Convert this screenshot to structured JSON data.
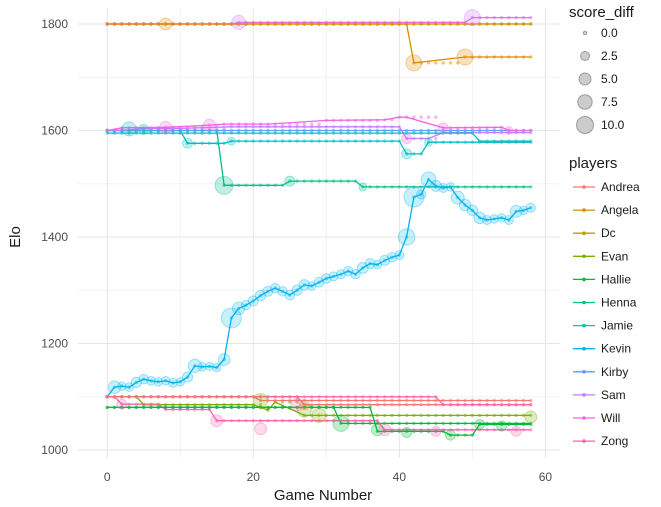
{
  "chart_data": {
    "type": "line",
    "xlabel": "Game Number",
    "ylabel": "Elo",
    "xlim": [
      -4,
      62
    ],
    "ylim": [
      985,
      1830
    ],
    "x_ticks": [
      0,
      20,
      40,
      60
    ],
    "y_ticks": [
      1000,
      1200,
      1400,
      1600,
      1800
    ],
    "x_tick_labels": [
      "0",
      "20",
      "40",
      "60"
    ],
    "y_tick_labels": [
      "1000",
      "1200",
      "1400",
      "1600",
      "1800"
    ],
    "grid": true,
    "size_legend": {
      "title": "score_diff",
      "values": [
        0.0,
        2.5,
        5.0,
        7.5,
        10.0
      ],
      "labels": [
        "0.0",
        "2.5",
        "5.0",
        "7.5",
        "10.0"
      ]
    },
    "color_legend": {
      "title": "players",
      "placement": "right"
    },
    "series": [
      {
        "name": "Andrea",
        "color": "#F8766D",
        "x": [
          0,
          26,
          27,
          58
        ],
        "y": [
          1100,
          1100,
          1085,
          1085
        ]
      },
      {
        "name": "Angela",
        "color": "#DE8C00",
        "x": [
          0,
          41,
          42,
          49,
          58
        ],
        "y": [
          1800,
          1800,
          1727,
          1738,
          1738
        ]
      },
      {
        "name": "Dc",
        "color": "#B79F00",
        "x": [
          0,
          8,
          58
        ],
        "y": [
          1800,
          1800,
          1800
        ]
      },
      {
        "name": "Evan",
        "color": "#7CAE00",
        "x": [
          0,
          4,
          5,
          20,
          22,
          23,
          27,
          58
        ],
        "y": [
          1100,
          1100,
          1085,
          1085,
          1075,
          1090,
          1065,
          1065
        ]
      },
      {
        "name": "Hallie",
        "color": "#00BA38",
        "x": [
          0,
          31,
          32,
          58
        ],
        "y": [
          1080,
          1080,
          1050,
          1050
        ]
      },
      {
        "name": "Henna",
        "color": "#00C08B",
        "x": [
          0,
          15,
          16,
          24,
          25,
          34,
          35,
          58
        ],
        "y": [
          1600,
          1600,
          1497,
          1497,
          1505,
          1505,
          1494,
          1494
        ]
      },
      {
        "name": "Jamie",
        "color": "#00BFC4",
        "x": [
          0,
          10,
          11,
          16,
          17,
          40,
          41,
          43,
          44,
          58
        ],
        "y": [
          1600,
          1600,
          1576,
          1576,
          1580,
          1580,
          1556,
          1556,
          1578,
          1578
        ]
      },
      {
        "name": "Kevin",
        "color": "#00B4F0",
        "x": [
          0,
          1,
          2,
          3,
          4,
          5,
          6,
          7,
          8,
          9,
          10,
          11,
          12,
          13,
          14,
          15,
          16,
          17,
          18,
          19,
          20,
          21,
          22,
          23,
          24,
          25,
          26,
          27,
          28,
          29,
          30,
          31,
          32,
          33,
          34,
          35,
          36,
          37,
          38,
          39,
          40,
          41,
          42,
          43,
          44,
          45,
          46,
          47,
          48,
          49,
          50,
          51,
          52,
          53,
          54,
          55,
          56,
          57,
          58
        ],
        "y": [
          1100,
          1118,
          1120,
          1118,
          1127,
          1133,
          1130,
          1128,
          1130,
          1126,
          1128,
          1137,
          1158,
          1156,
          1157,
          1155,
          1170,
          1248,
          1266,
          1272,
          1280,
          1290,
          1298,
          1304,
          1298,
          1291,
          1300,
          1310,
          1308,
          1315,
          1322,
          1326,
          1330,
          1336,
          1330,
          1342,
          1350,
          1348,
          1356,
          1362,
          1366,
          1400,
          1475,
          1480,
          1508,
          1496,
          1492,
          1494,
          1474,
          1460,
          1450,
          1436,
          1432,
          1434,
          1436,
          1432,
          1448,
          1450,
          1455
        ]
      },
      {
        "name": "Kirby",
        "color": "#619CFF",
        "x": [
          0,
          58
        ],
        "y": [
          1600,
          1600
        ]
      },
      {
        "name": "Sam",
        "color": "#C77CFF",
        "x": [
          0,
          2,
          5,
          10,
          17,
          25,
          40,
          41,
          44,
          46,
          58
        ],
        "y": [
          1600,
          1600,
          1604,
          1604,
          1607,
          1607,
          1607,
          1585,
          1585,
          1596,
          1596
        ]
      },
      {
        "name": "Will",
        "color": "#F564E3",
        "x": [
          0,
          8,
          13,
          17,
          18,
          42,
          43,
          49,
          50,
          58
        ],
        "y": [
          1800,
          1800,
          1800,
          1800,
          1803,
          1803,
          1803,
          1803,
          1812,
          1812
        ]
      },
      {
        "name": "Zong",
        "color": "#FF64B0",
        "x": [
          0,
          1,
          2,
          7,
          8,
          14,
          15,
          37,
          38,
          58
        ],
        "y": [
          1100,
          1100,
          1086,
          1086,
          1076,
          1076,
          1055,
          1055,
          1038,
          1038
        ]
      }
    ],
    "extra_lines": [
      {
        "name": "Will",
        "color": "#F564E3",
        "x": [
          0,
          2,
          8,
          14,
          16,
          22,
          30,
          38,
          40,
          41,
          46,
          54,
          55,
          58
        ],
        "y": [
          1600,
          1605,
          1606,
          1610,
          1612,
          1612,
          1619,
          1620,
          1625,
          1625,
          1605,
          1606,
          1600,
          1600
        ]
      },
      {
        "name": "Zong",
        "color": "#FF64B0",
        "x": [
          0,
          45,
          46,
          58
        ],
        "y": [
          1100,
          1100,
          1085,
          1085
        ]
      },
      {
        "name": "Andrea",
        "color": "#F8766D",
        "x": [
          0,
          20,
          21,
          58
        ],
        "y": [
          1100,
          1100,
          1093,
          1093
        ]
      },
      {
        "name": "Angela",
        "color": "#DE8C00",
        "x": [
          0,
          58
        ],
        "y": [
          1800,
          1800
        ]
      },
      {
        "name": "Hallie",
        "color": "#00BA38",
        "x": [
          0,
          36,
          37,
          46,
          47,
          50,
          51,
          58
        ],
        "y": [
          1080,
          1080,
          1035,
          1035,
          1028,
          1028,
          1048,
          1048
        ]
      },
      {
        "name": "Jamie",
        "color": "#00BFC4",
        "x": [
          0,
          50,
          51,
          58
        ],
        "y": [
          1595,
          1595,
          1580,
          1580
        ]
      }
    ],
    "points": [
      {
        "name": "Dc",
        "color": "#DE8C00",
        "x": 8,
        "y": 1800,
        "size": 6
      },
      {
        "name": "Angela",
        "color": "#DE8C00",
        "x": 42,
        "y": 1727,
        "size": 8
      },
      {
        "name": "Angela",
        "color": "#DE8C00",
        "x": 49,
        "y": 1738,
        "size": 8
      },
      {
        "name": "Will",
        "color": "#C77CFF",
        "x": 18,
        "y": 1803,
        "size": 7
      },
      {
        "name": "Will",
        "color": "#C77CFF",
        "x": 50,
        "y": 1812,
        "size": 8
      },
      {
        "name": "Henna",
        "color": "#00C08B",
        "x": 16,
        "y": 1497,
        "size": 9
      },
      {
        "name": "Henna",
        "color": "#00C08B",
        "x": 25,
        "y": 1505,
        "size": 5
      },
      {
        "name": "Henna",
        "color": "#00C08B",
        "x": 35,
        "y": 1494,
        "size": 4
      },
      {
        "name": "Jamie",
        "color": "#00BFC4",
        "x": 11,
        "y": 1576,
        "size": 5
      },
      {
        "name": "Jamie",
        "color": "#00BFC4",
        "x": 17,
        "y": 1580,
        "size": 4
      },
      {
        "name": "Jamie",
        "color": "#00BFC4",
        "x": 41,
        "y": 1556,
        "size": 5
      },
      {
        "name": "Jamie",
        "color": "#00BFC4",
        "x": 44,
        "y": 1578,
        "size": 4
      },
      {
        "name": "Sam",
        "color": "#F564E3",
        "x": 8,
        "y": 1606,
        "size": 6
      },
      {
        "name": "Sam",
        "color": "#F564E3",
        "x": 14,
        "y": 1610,
        "size": 6
      },
      {
        "name": "Sam",
        "color": "#F564E3",
        "x": 41,
        "y": 1585,
        "size": 5
      },
      {
        "name": "Sam",
        "color": "#F564E3",
        "x": 46,
        "y": 1605,
        "size": 5
      },
      {
        "name": "Sam",
        "color": "#F564E3",
        "x": 55,
        "y": 1600,
        "size": 4
      },
      {
        "name": "Kirby",
        "color": "#00BFC4",
        "x": 3,
        "y": 1603,
        "size": 7
      },
      {
        "name": "Kirby",
        "color": "#00BFC4",
        "x": 5,
        "y": 1602,
        "size": 5
      },
      {
        "name": "Evan",
        "color": "#7CAE00",
        "x": 21,
        "y": 1093,
        "size": 7
      },
      {
        "name": "Evan",
        "color": "#7CAE00",
        "x": 27,
        "y": 1075,
        "size": 7
      },
      {
        "name": "Evan",
        "color": "#7CAE00",
        "x": 29,
        "y": 1065,
        "size": 7
      },
      {
        "name": "Evan",
        "color": "#7CAE00",
        "x": 58,
        "y": 1062,
        "size": 6
      },
      {
        "name": "Hallie",
        "color": "#00BA38",
        "x": 32,
        "y": 1050,
        "size": 8
      },
      {
        "name": "Hallie",
        "color": "#00BA38",
        "x": 37,
        "y": 1038,
        "size": 6
      },
      {
        "name": "Hallie",
        "color": "#00BA38",
        "x": 41,
        "y": 1033,
        "size": 5
      },
      {
        "name": "Hallie",
        "color": "#00BA38",
        "x": 47,
        "y": 1028,
        "size": 5
      },
      {
        "name": "Hallie",
        "color": "#00BA38",
        "x": 51,
        "y": 1048,
        "size": 5
      },
      {
        "name": "Hallie",
        "color": "#00BA38",
        "x": 54,
        "y": 1045,
        "size": 5
      },
      {
        "name": "Zong",
        "color": "#FF64B0",
        "x": 2,
        "y": 1086,
        "size": 5
      },
      {
        "name": "Zong",
        "color": "#FF64B0",
        "x": 15,
        "y": 1055,
        "size": 6
      },
      {
        "name": "Zong",
        "color": "#FF64B0",
        "x": 21,
        "y": 1040,
        "size": 6
      },
      {
        "name": "Zong",
        "color": "#FF64B0",
        "x": 26,
        "y": 1085,
        "size": 6
      },
      {
        "name": "Zong",
        "color": "#FF64B0",
        "x": 38,
        "y": 1038,
        "size": 6
      },
      {
        "name": "Zong",
        "color": "#FF64B0",
        "x": 45,
        "y": 1035,
        "size": 5
      },
      {
        "name": "Zong",
        "color": "#FF64B0",
        "x": 56,
        "y": 1035,
        "size": 5
      },
      {
        "name": "Andrea",
        "color": "#F8766D",
        "x": 27,
        "y": 1085,
        "size": 5
      }
    ]
  }
}
